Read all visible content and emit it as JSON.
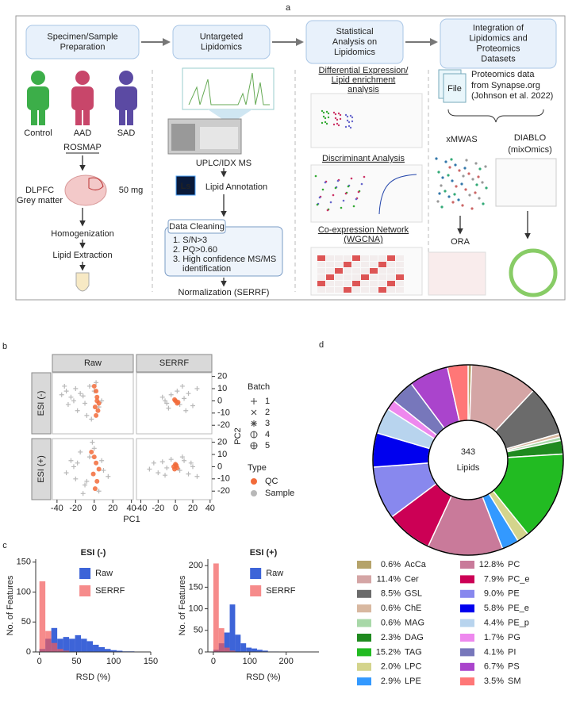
{
  "panel_labels": [
    "a",
    "b",
    "c",
    "d"
  ],
  "workflow": {
    "steps": [
      {
        "lines": [
          "Specimen/Sample",
          "Preparation"
        ]
      },
      {
        "lines": [
          "Untargeted",
          "Lipidomics"
        ]
      },
      {
        "lines": [
          "Statistical",
          "Analysis on",
          "Lipidomics"
        ]
      },
      {
        "lines": [
          "Integration of",
          "Lipidomics and",
          "Proteomics",
          "Datasets"
        ]
      }
    ],
    "groups": [
      "Control",
      "AAD",
      "SAD"
    ],
    "cohort": "ROSMAP",
    "tissue": [
      "DLPFC",
      "Grey matter"
    ],
    "amount": "50 mg",
    "prep_steps": [
      "Homogenization",
      "Lipid Extraction"
    ],
    "instrument": "UPLC/IDX MS",
    "logo": "Ls",
    "annotation": "Lipid Annotation",
    "cleaning": {
      "title": "Data Cleaning",
      "items": [
        "1. S/N>3",
        "2. PQ>0.60",
        "3. High confidence MS/MS",
        "identification"
      ]
    },
    "normalization": "Normalization (SERRF)",
    "analyses": [
      {
        "lines": [
          "Differential Expression/",
          "Lipid enrichment",
          "analysis"
        ]
      },
      {
        "lines": [
          "Discriminant Analysis"
        ]
      },
      {
        "lines": [
          "Co-expression Network",
          "(WGCNA)"
        ]
      }
    ],
    "file_icon": "File",
    "proteomics": [
      "Proteomics data",
      "from Synapse.org",
      "(Johnson et al. 2022)"
    ],
    "methods": [
      {
        "lines": [
          "xMWAS"
        ]
      },
      {
        "lines": [
          "DIABLO",
          "(mixOmics)"
        ]
      }
    ],
    "ora": "ORA"
  },
  "chart_data": [
    {
      "type": "scatter",
      "x_label": "PC1",
      "y_label": "PC2",
      "columns": [
        "Raw",
        "SERRF"
      ],
      "rows": [
        "ESI (-)",
        "ESI (+)"
      ],
      "xlim": [
        -45,
        42
      ],
      "ylim": [
        -27,
        23
      ],
      "xticks": [
        -40,
        -20,
        0,
        20,
        40
      ],
      "yticks": [
        -20,
        -10,
        0,
        10,
        20
      ],
      "batch_title": "Batch",
      "batches": [
        "1",
        "2",
        "3",
        "4",
        "5"
      ],
      "type_title": "Type",
      "series": [
        {
          "name": "QC",
          "color": "#f26b3a"
        },
        {
          "name": "Sample",
          "color": "#b8b8b8"
        }
      ],
      "panels": [
        [
          {
            "series": [
              {
                "x": [
                  0,
                  2,
                  3,
                  5,
                  1,
                  4,
                  2,
                  3
                ],
                "y": [
                  12,
                  8,
                  3,
                  -2,
                  -5,
                  -8,
                  -12,
                  0
                ]
              },
              {
                "x": [
                  -35,
                  -30,
                  -25,
                  -20,
                  -15,
                  -10,
                  -5,
                  0,
                  5,
                  -28,
                  -18,
                  -8,
                  2,
                  -22,
                  -12,
                  8,
                  -3,
                  -32
                ],
                "y": [
                  5,
                  8,
                  3,
                  10,
                  6,
                  -2,
                  12,
                  8,
                  -5,
                  -3,
                  -8,
                  -12,
                  15,
                  0,
                  4,
                  0,
                  -15,
                  12
                ]
              }
            ]
          },
          {
            "series": [
              {
                "x": [
                  0,
                  2,
                  -1,
                  3
                ],
                "y": [
                  0,
                  -2,
                  1,
                  -1
                ]
              },
              {
                "x": [
                  -15,
                  -10,
                  -5,
                  0,
                  5,
                  10,
                  15,
                  20,
                  -8,
                  2,
                  12,
                  25,
                  -12,
                  8
                ],
                "y": [
                  3,
                  -2,
                  5,
                  0,
                  -3,
                  2,
                  6,
                  -4,
                  -6,
                  8,
                  -8,
                  10,
                  0,
                  12
                ]
              }
            ]
          }
        ],
        [
          {
            "series": [
              {
                "x": [
                  -3,
                  0,
                  2,
                  5,
                  -1,
                  3,
                  1
                ],
                "y": [
                  12,
                  8,
                  3,
                  -2,
                  -6,
                  -12,
                  -18
                ]
              },
              {
                "x": [
                  -30,
                  -25,
                  -20,
                  -15,
                  -10,
                  -5,
                  0,
                  5,
                  10,
                  -22,
                  -12,
                  -2,
                  8,
                  -18,
                  15,
                  -8
                ],
                "y": [
                  -5,
                  5,
                  -10,
                  12,
                  -15,
                  8,
                  15,
                  -20,
                  -3,
                  0,
                  -22,
                  20,
                  5,
                  3,
                  -8,
                  -12
                ]
              }
            ]
          },
          {
            "series": [
              {
                "x": [
                  -2,
                  0,
                  2,
                  1,
                  -1
                ],
                "y": [
                  0,
                  2,
                  -1,
                  1,
                  -2
                ]
              },
              {
                "x": [
                  -30,
                  -25,
                  -20,
                  -15,
                  -10,
                  -5,
                  0,
                  5,
                  10,
                  15,
                  20,
                  25,
                  -12,
                  8,
                  18
                ],
                "y": [
                  -2,
                  3,
                  -5,
                  4,
                  -1,
                  6,
                  2,
                  -3,
                  5,
                  -6,
                  0,
                  -8,
                  -7,
                  8,
                  3
                ]
              }
            ]
          }
        ]
      ]
    },
    {
      "type": "histogram",
      "title": "ESI (-)",
      "x_label": "RSD (%)",
      "y_label": "No. of Features",
      "bins": [
        0,
        8,
        16,
        24,
        32,
        40,
        48,
        56,
        64,
        72,
        80,
        88,
        96,
        104,
        112,
        120,
        128
      ],
      "series": [
        {
          "name": "Raw",
          "color": "#3d64d8",
          "values": [
            5,
            22,
            40,
            22,
            25,
            22,
            28,
            22,
            18,
            12,
            8,
            5,
            3,
            2,
            1,
            1
          ]
        },
        {
          "name": "SERRF",
          "color": "#f25a5a",
          "values": [
            118,
            35,
            15,
            5,
            2,
            0,
            0,
            0,
            0,
            0,
            0,
            0,
            0,
            0,
            0,
            0
          ]
        }
      ],
      "xlim": [
        -5,
        150
      ],
      "ylim": [
        0,
        155
      ],
      "xticks": [
        0,
        50,
        100,
        150
      ],
      "yticks": [
        0,
        50,
        100,
        150
      ]
    },
    {
      "type": "histogram",
      "title": "ESI (+)",
      "x_label": "RSD (%)",
      "y_label": "No. of Features",
      "bins": [
        0,
        15,
        30,
        45,
        60,
        75,
        90,
        105,
        120,
        135,
        150,
        165,
        180
      ],
      "series": [
        {
          "name": "Raw",
          "color": "#3d64d8",
          "values": [
            5,
            20,
            45,
            110,
            40,
            20,
            10,
            8,
            5,
            3,
            1,
            1
          ]
        },
        {
          "name": "SERRF",
          "color": "#f25a5a",
          "values": [
            205,
            55,
            10,
            3,
            0,
            0,
            0,
            0,
            0,
            0,
            0,
            0
          ]
        }
      ],
      "xlim": [
        -15,
        290
      ],
      "ylim": [
        0,
        215
      ],
      "xticks": [
        0,
        100,
        200
      ],
      "yticks": [
        0,
        50,
        100,
        150,
        200
      ]
    },
    {
      "type": "pie",
      "center_label": [
        "343",
        "Lipids"
      ],
      "categories": [
        "AcCa",
        "Cer",
        "GSL",
        "ChE",
        "MAG",
        "DAG",
        "TAG",
        "LPC",
        "LPE",
        "PC",
        "PC_e",
        "PE",
        "PE_e",
        "PE_p",
        "PG",
        "PI",
        "PS",
        "SM"
      ],
      "values": [
        0.6,
        11.4,
        8.5,
        0.6,
        0.6,
        2.3,
        15.2,
        2.0,
        2.9,
        12.8,
        7.9,
        9.0,
        5.8,
        4.4,
        1.7,
        4.1,
        6.7,
        3.5
      ],
      "value_labels": [
        "0.6%",
        "11.4%",
        "8.5%",
        "0.6%",
        "0.6%",
        "2.3%",
        "15.2%",
        "2.0%",
        "2.9%",
        "12.8%",
        "7.9%",
        "9.0%",
        "5.8%",
        "4.4%",
        "1.7%",
        "4.1%",
        "6.7%",
        "3.5%"
      ],
      "colors": [
        "#b5a36a",
        "#d4a5a5",
        "#6b6b6b",
        "#d8b8a0",
        "#a8d8a8",
        "#1f8a1f",
        "#22bb22",
        "#d4d48c",
        "#3399ff",
        "#c97a9a",
        "#cc0055",
        "#8888ee",
        "#0000ee",
        "#b8d4ee",
        "#ee88ee",
        "#7777bb",
        "#aa44cc",
        "#ff7777"
      ]
    }
  ]
}
